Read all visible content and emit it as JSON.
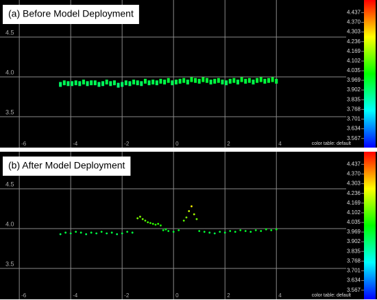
{
  "chart_data": [
    {
      "type": "scatter",
      "title": "(a) Before Model Deployment",
      "marker": "bar",
      "x": [
        -4.4,
        -4.25,
        -4.1,
        -3.95,
        -3.8,
        -3.65,
        -3.5,
        -3.35,
        -3.2,
        -3.05,
        -2.9,
        -2.75,
        -2.6,
        -2.45,
        -2.3,
        -2.15,
        -2.0,
        -1.85,
        -1.7,
        -1.55,
        -1.4,
        -1.25,
        -1.1,
        -0.95,
        -0.8,
        -0.65,
        -0.5,
        -0.35,
        -0.2,
        -0.05,
        0.1,
        0.25,
        0.4,
        0.55,
        0.7,
        0.85,
        1.0,
        1.15,
        1.3,
        1.45,
        1.6,
        1.75,
        1.9,
        2.05,
        2.2,
        2.35,
        2.5,
        2.65,
        2.8,
        2.95,
        3.1,
        3.25,
        3.4,
        3.55,
        3.7,
        3.85,
        4.0
      ],
      "y": [
        3.91,
        3.93,
        3.92,
        3.92,
        3.93,
        3.92,
        3.94,
        3.92,
        3.93,
        3.93,
        3.91,
        3.92,
        3.94,
        3.92,
        3.93,
        3.9,
        3.91,
        3.93,
        3.92,
        3.94,
        3.93,
        3.92,
        3.95,
        3.93,
        3.94,
        3.93,
        3.95,
        3.94,
        3.96,
        3.93,
        3.94,
        3.95,
        3.96,
        3.94,
        3.97,
        3.96,
        3.95,
        3.97,
        3.96,
        3.94,
        3.95,
        3.96,
        3.94,
        3.93,
        3.95,
        3.96,
        3.94,
        3.97,
        3.95,
        3.96,
        3.94,
        3.96,
        3.97,
        3.95,
        3.96,
        3.97,
        3.95
      ],
      "xlim": [
        -6.75,
        7.3
      ],
      "xticks": [
        -6,
        -4,
        -2,
        0,
        2,
        4
      ],
      "ylim": [
        3.112,
        4.966
      ],
      "yticks": [
        3.5,
        {
          "value": 4,
          "label": "4.0"
        },
        4.5
      ],
      "grid": true,
      "colorbar": {
        "label": "color table: default",
        "lim": [
          3.504,
          4.524
        ],
        "ticks": [
          4.437,
          {
            "value": 4.37,
            "label": "4.370"
          },
          4.303,
          4.236,
          4.169,
          4.102,
          4.035,
          3.969,
          3.902,
          3.835,
          3.768,
          3.701,
          3.634,
          3.567
        ]
      }
    },
    {
      "type": "scatter",
      "title": "(b) After Model Deployment",
      "marker": "dot",
      "x": [
        -4.4,
        -4.2,
        -4.0,
        -3.8,
        -3.6,
        -3.4,
        -3.2,
        -3.0,
        -2.8,
        -2.6,
        -2.4,
        -2.2,
        -2.0,
        -1.8,
        -1.6,
        -1.4,
        -1.3,
        -1.2,
        -1.1,
        -1.0,
        -0.9,
        -0.8,
        -0.7,
        -0.6,
        -0.5,
        -0.4,
        -0.3,
        -0.2,
        0.0,
        0.2,
        0.4,
        0.5,
        0.6,
        0.7,
        0.8,
        0.9,
        1.0,
        1.2,
        1.4,
        1.6,
        1.8,
        2.0,
        2.2,
        2.4,
        2.6,
        2.8,
        3.0,
        3.2,
        3.4,
        3.6,
        3.8,
        4.0
      ],
      "y": [
        3.93,
        3.95,
        3.94,
        3.96,
        3.95,
        3.93,
        3.95,
        3.94,
        3.96,
        3.94,
        3.95,
        3.93,
        3.94,
        3.96,
        3.95,
        4.13,
        4.15,
        4.12,
        4.1,
        4.08,
        4.07,
        4.06,
        4.05,
        4.06,
        4.04,
        3.98,
        3.99,
        3.97,
        3.96,
        3.98,
        4.1,
        4.14,
        4.22,
        4.28,
        4.18,
        4.12,
        3.97,
        3.96,
        3.95,
        3.94,
        3.96,
        3.95,
        3.97,
        3.96,
        3.98,
        3.97,
        3.96,
        3.98,
        3.97,
        3.99,
        3.98,
        3.99
      ],
      "xlim": [
        -6.75,
        7.3
      ],
      "xticks": [
        -6,
        -4,
        -2,
        0,
        2,
        4
      ],
      "ylim": [
        3.112,
        4.966
      ],
      "yticks": [
        3.5,
        {
          "value": 4,
          "label": "4.0"
        },
        4.5
      ],
      "grid": true,
      "colorbar": {
        "label": "color table: default",
        "lim": [
          3.504,
          4.524
        ],
        "ticks": [
          4.437,
          {
            "value": 4.37,
            "label": "4.370"
          },
          4.303,
          4.236,
          4.169,
          4.102,
          4.035,
          3.969,
          3.902,
          3.835,
          3.768,
          3.701,
          3.634,
          3.567
        ]
      }
    }
  ]
}
